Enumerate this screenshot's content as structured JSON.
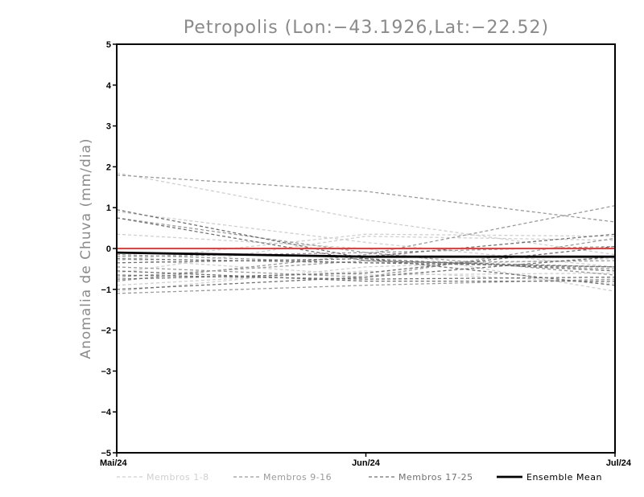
{
  "chart_data": {
    "type": "line",
    "title": "Petropolis (Lon:−43.1926,Lat:−22.52)",
    "xlabel": "",
    "ylabel": "Anomalia de Chuva (mm/dia)",
    "x_ticks": [
      "Mai/24",
      "Jun/24",
      "Jul/24"
    ],
    "y_ticks": [
      "5",
      "4",
      "3",
      "2",
      "1",
      "0",
      "−1",
      "−2",
      "−3",
      "−4",
      "−5"
    ],
    "ylim": [
      -5,
      5
    ],
    "grid": false,
    "legend_position": "bottom",
    "zero_line_color": "#e8413a",
    "groups": [
      {
        "name": "Membros 1-8",
        "color": "#cfcfcf",
        "dash": "4,3"
      },
      {
        "name": "Membros 9-16",
        "color": "#9a9a9a",
        "dash": "4,3"
      },
      {
        "name": "Membros 17-25",
        "color": "#707070",
        "dash": "4,3"
      },
      {
        "name": "Ensemble Mean",
        "color": "#000000",
        "dash": ""
      }
    ],
    "series": [
      {
        "group": 0,
        "values": [
          1.85,
          0.7,
          -0.15
        ]
      },
      {
        "group": 0,
        "values": [
          0.9,
          0.15,
          -0.45
        ]
      },
      {
        "group": 0,
        "values": [
          0.35,
          0.0,
          -1.05
        ]
      },
      {
        "group": 0,
        "values": [
          -0.3,
          0.35,
          0.3
        ]
      },
      {
        "group": 0,
        "values": [
          -0.9,
          -0.55,
          -0.85
        ]
      },
      {
        "group": 0,
        "values": [
          -0.6,
          0.3,
          0.2
        ]
      },
      {
        "group": 0,
        "values": [
          -0.25,
          -0.65,
          -0.6
        ]
      },
      {
        "group": 0,
        "values": [
          -1.05,
          -0.45,
          -0.25
        ]
      },
      {
        "group": 1,
        "values": [
          1.8,
          1.4,
          0.65
        ]
      },
      {
        "group": 1,
        "values": [
          0.75,
          -0.1,
          -0.65
        ]
      },
      {
        "group": 1,
        "values": [
          -0.2,
          -0.1,
          0.05
        ]
      },
      {
        "group": 1,
        "values": [
          -0.7,
          -0.3,
          -0.5
        ]
      },
      {
        "group": 1,
        "values": [
          -0.45,
          -0.7,
          0.25
        ]
      },
      {
        "group": 1,
        "values": [
          -0.8,
          -0.15,
          1.05
        ]
      },
      {
        "group": 1,
        "values": [
          -1.1,
          -0.9,
          -0.75
        ]
      },
      {
        "group": 1,
        "values": [
          -0.15,
          -0.35,
          -0.3
        ]
      },
      {
        "group": 2,
        "values": [
          0.95,
          -0.25,
          -0.9
        ]
      },
      {
        "group": 2,
        "values": [
          0.75,
          -0.3,
          -0.45
        ]
      },
      {
        "group": 2,
        "values": [
          -0.1,
          -0.2,
          0.35
        ]
      },
      {
        "group": 2,
        "values": [
          -0.35,
          -0.25,
          -0.55
        ]
      },
      {
        "group": 2,
        "values": [
          -0.65,
          -0.75,
          -0.7
        ]
      },
      {
        "group": 2,
        "values": [
          -1.0,
          -0.7,
          -0.2
        ]
      },
      {
        "group": 2,
        "values": [
          -0.75,
          -0.6,
          0.05
        ]
      },
      {
        "group": 2,
        "values": [
          -0.25,
          -0.35,
          -0.45
        ]
      },
      {
        "group": 2,
        "values": [
          -0.55,
          -0.8,
          -0.8
        ]
      }
    ],
    "ensemble_mean": {
      "values": [
        -0.1,
        -0.2,
        -0.2
      ]
    }
  }
}
